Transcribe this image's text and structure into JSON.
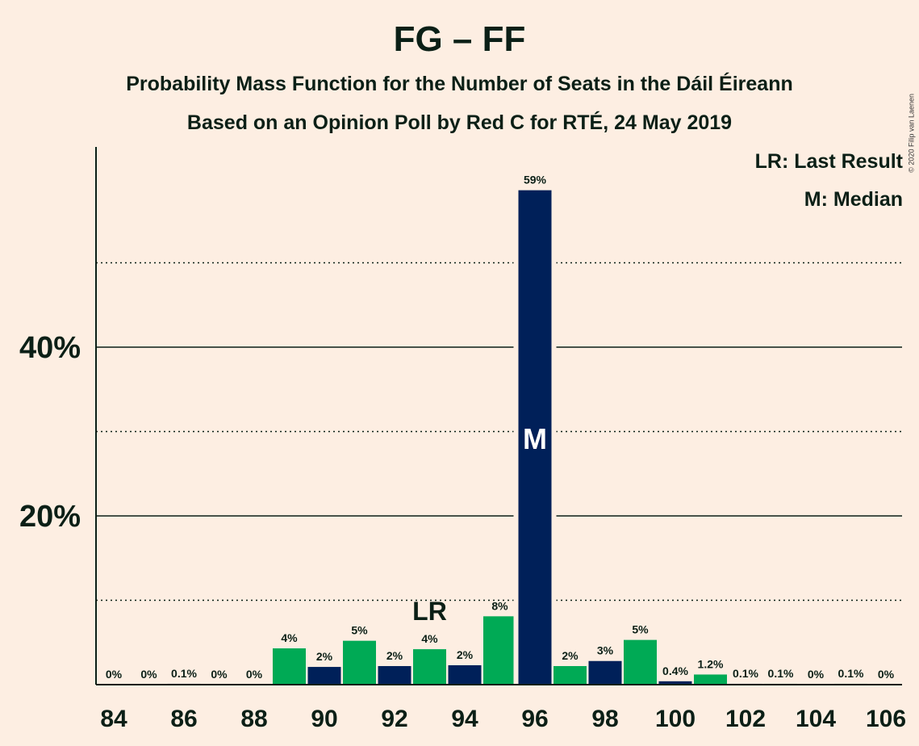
{
  "title": "FG – FF",
  "subtitle_1": "Probability Mass Function for the Number of Seats in the Dáil Éireann",
  "subtitle_2": "Based on an Opinion Poll by Red C for RTÉ, 24 May 2019",
  "copyright": "© 2020 Filip van Laenen",
  "legend": {
    "last_result": "LR: Last Result",
    "median": "M: Median"
  },
  "colors": {
    "background": "#FDEEE2",
    "green": "#00AA55",
    "navy": "#002059",
    "text": "#0B1F16"
  },
  "chart_data": {
    "type": "bar",
    "title": "FG – FF",
    "xlabel": "",
    "ylabel": "",
    "ylim": [
      0,
      63
    ],
    "x_ticks": [
      "84",
      "86",
      "88",
      "90",
      "92",
      "94",
      "96",
      "98",
      "100",
      "102",
      "104",
      "106"
    ],
    "y_ticks": [
      "20%",
      "40%"
    ],
    "y_tick_values": [
      20,
      40
    ],
    "dotted_gridlines": [
      10,
      30,
      50
    ],
    "last_result_seat": 93,
    "last_result_label": "LR",
    "median_seat": 96,
    "median_label": "M",
    "bars": [
      {
        "seat": 84,
        "value": 0,
        "label": "0%"
      },
      {
        "seat": 85,
        "value": 0,
        "label": "0%"
      },
      {
        "seat": 86,
        "value": 0.1,
        "label": "0.1%"
      },
      {
        "seat": 87,
        "value": 0,
        "label": "0%"
      },
      {
        "seat": 88,
        "value": 0,
        "label": "0%"
      },
      {
        "seat": 89,
        "value": 4.3,
        "label": "4%"
      },
      {
        "seat": 90,
        "value": 2.1,
        "label": "2%"
      },
      {
        "seat": 91,
        "value": 5.2,
        "label": "5%"
      },
      {
        "seat": 92,
        "value": 2.2,
        "label": "2%"
      },
      {
        "seat": 93,
        "value": 4.2,
        "label": "4%"
      },
      {
        "seat": 94,
        "value": 2.3,
        "label": "2%"
      },
      {
        "seat": 95,
        "value": 8.1,
        "label": "8%"
      },
      {
        "seat": 96,
        "value": 58.6,
        "label": "59%"
      },
      {
        "seat": 97,
        "value": 2.2,
        "label": "2%"
      },
      {
        "seat": 98,
        "value": 2.8,
        "label": "3%"
      },
      {
        "seat": 99,
        "value": 5.3,
        "label": "5%"
      },
      {
        "seat": 100,
        "value": 0.4,
        "label": "0.4%"
      },
      {
        "seat": 101,
        "value": 1.2,
        "label": "1.2%"
      },
      {
        "seat": 102,
        "value": 0.1,
        "label": "0.1%"
      },
      {
        "seat": 103,
        "value": 0.1,
        "label": "0.1%"
      },
      {
        "seat": 104,
        "value": 0,
        "label": "0%"
      },
      {
        "seat": 105,
        "value": 0.1,
        "label": "0.1%"
      },
      {
        "seat": 106,
        "value": 0,
        "label": "0%"
      }
    ]
  }
}
